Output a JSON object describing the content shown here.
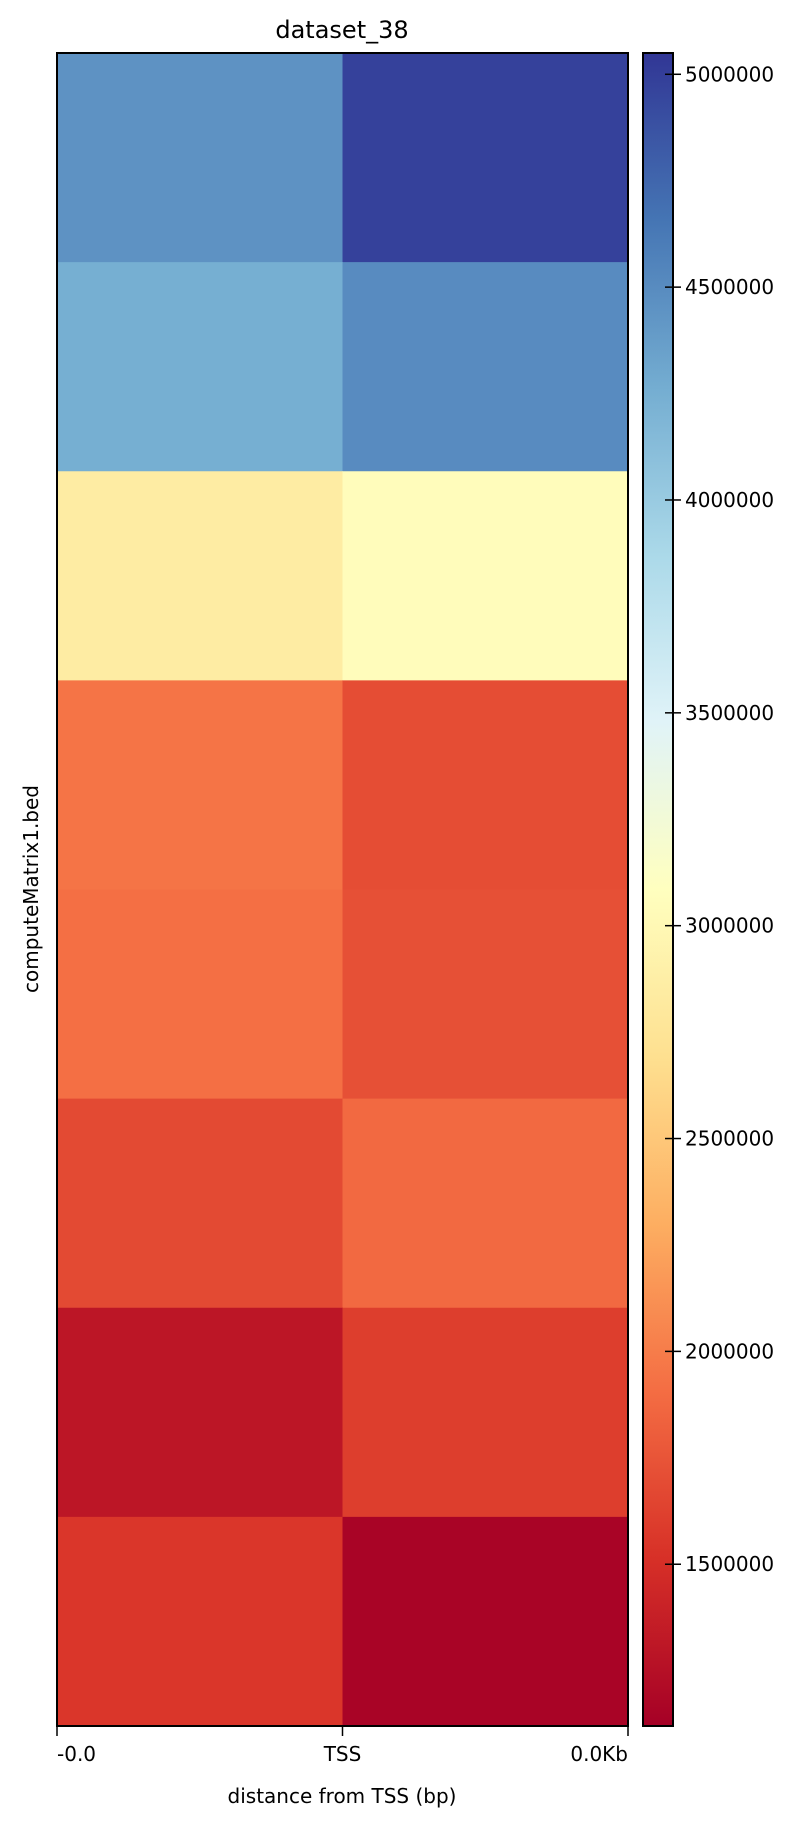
{
  "chart_data": {
    "type": "heatmap",
    "title": "dataset_38",
    "xlabel": "distance from TSS (bp)",
    "ylabel": "computeMatrix1.bed",
    "x_tick_labels": [
      "-0.0",
      "TSS",
      "0.0Kb"
    ],
    "columns": 2,
    "rows": 8,
    "values": [
      [
        4450000,
        4980000
      ],
      [
        4250000,
        4500000
      ],
      [
        2850000,
        3050000
      ],
      [
        1950000,
        1700000
      ],
      [
        1920000,
        1720000
      ],
      [
        1680000,
        1880000
      ],
      [
        1300000,
        1600000
      ],
      [
        1550000,
        1150000
      ]
    ],
    "colorbar": {
      "colormap": "RdYlBu",
      "vmin": 1120000,
      "vmax": 5050000,
      "ticks": [
        1500000,
        2000000,
        2500000,
        3000000,
        3500000,
        4000000,
        4500000,
        5000000
      ],
      "tick_labels": [
        "1500000",
        "2000000",
        "2500000",
        "3000000",
        "3500000",
        "4000000",
        "4500000",
        "5000000"
      ]
    }
  }
}
